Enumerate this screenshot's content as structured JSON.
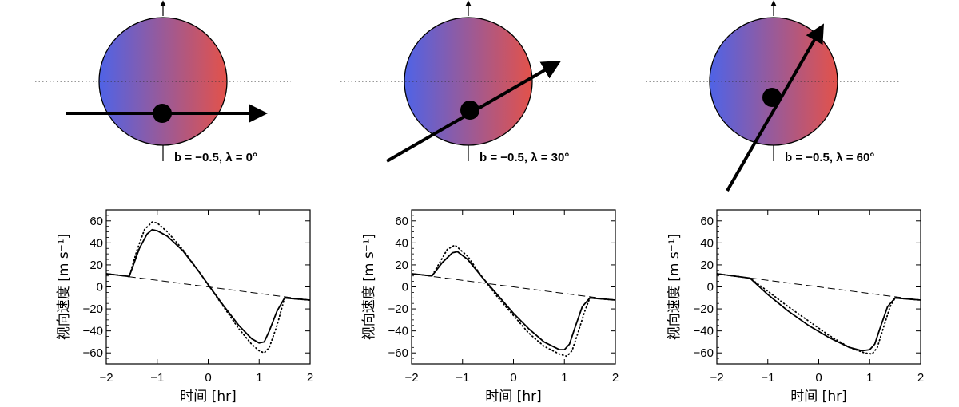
{
  "figure": {
    "panels": [
      {
        "diagram": {
          "caption": "b = −0.5, λ = 0°",
          "b": -0.5,
          "lambda_deg": 0
        },
        "chart": {
          "type": "line",
          "xlabel": "时间 [hr]",
          "ylabel": "视向速度 [m s⁻¹]",
          "xlim": [
            -2,
            2
          ],
          "ylim": [
            -70,
            70
          ],
          "xticks": [
            "−2",
            "−1",
            "0",
            "1",
            "2"
          ],
          "yticks": [
            "60",
            "40",
            "20",
            "0",
            "−20",
            "−40",
            "−60"
          ]
        }
      },
      {
        "diagram": {
          "caption": "b = −0.5, λ = 30°",
          "b": -0.5,
          "lambda_deg": 30
        },
        "chart": {
          "type": "line",
          "xlabel": "时间 [hr]",
          "ylabel": "视向速度 [m s⁻¹]",
          "xlim": [
            -2,
            2
          ],
          "ylim": [
            -70,
            70
          ],
          "xticks": [
            "−2",
            "−1",
            "0",
            "1",
            "2"
          ],
          "yticks": [
            "60",
            "40",
            "20",
            "0",
            "−20",
            "−40",
            "−60"
          ]
        }
      },
      {
        "diagram": {
          "caption": "b = −0.5, λ = 60°",
          "b": -0.5,
          "lambda_deg": 60
        },
        "chart": {
          "type": "line",
          "xlabel": "时间 [hr]",
          "ylabel": "视向速度 [m s⁻¹]",
          "xlim": [
            -2,
            2
          ],
          "ylim": [
            -70,
            70
          ],
          "xticks": [
            "−2",
            "−1",
            "0",
            "1",
            "2"
          ],
          "yticks": [
            "60",
            "40",
            "20",
            "0",
            "−20",
            "−40",
            "−60"
          ]
        }
      }
    ]
  },
  "chart_data": [
    {
      "type": "line",
      "xlabel": "时间 [hr]",
      "ylabel": "视向速度 [m s⁻¹]",
      "xlim": [
        -2,
        2
      ],
      "ylim": [
        -70,
        70
      ],
      "series": [
        {
          "style": "solid",
          "x": [
            -2,
            -1.55,
            -1.35,
            -1.2,
            -1.1,
            -1.0,
            -0.8,
            -0.5,
            -0.2,
            0,
            0.3,
            0.6,
            0.85,
            1.0,
            1.1,
            1.2,
            1.35,
            1.5,
            2
          ],
          "y": [
            12,
            9.5,
            35,
            48,
            52,
            51,
            46,
            33,
            15,
            2,
            -17,
            -35,
            -47,
            -51,
            -50,
            -40,
            -22,
            -10,
            -12
          ]
        },
        {
          "style": "dotted",
          "x": [
            -2,
            -1.55,
            -1.4,
            -1.25,
            -1.1,
            -1.0,
            -0.8,
            -0.5,
            -0.2,
            0,
            0.3,
            0.6,
            0.85,
            1.0,
            1.1,
            1.2,
            1.35,
            1.5,
            2
          ],
          "y": [
            12,
            9.5,
            33,
            52,
            59,
            58,
            50,
            34,
            15,
            2,
            -18,
            -38,
            -52,
            -58,
            -60,
            -55,
            -35,
            -10,
            -12
          ]
        },
        {
          "style": "dashed",
          "x": [
            -2,
            2
          ],
          "y": [
            12,
            -12
          ]
        }
      ]
    },
    {
      "type": "line",
      "xlabel": "时间 [hr]",
      "ylabel": "视向速度 [m s⁻¹]",
      "xlim": [
        -2,
        2
      ],
      "ylim": [
        -70,
        70
      ],
      "series": [
        {
          "style": "solid",
          "x": [
            -2,
            -1.6,
            -1.4,
            -1.2,
            -1.1,
            -0.9,
            -0.6,
            -0.3,
            0,
            0.3,
            0.6,
            0.9,
            1.0,
            1.1,
            1.2,
            1.35,
            1.5,
            2
          ],
          "y": [
            12,
            10,
            22,
            31,
            32,
            25,
            8,
            -8,
            -24,
            -38,
            -50,
            -57,
            -57,
            -52,
            -38,
            -18,
            -10,
            -12
          ]
        },
        {
          "style": "dotted",
          "x": [
            -2,
            -1.6,
            -1.45,
            -1.3,
            -1.15,
            -0.9,
            -0.6,
            -0.3,
            0,
            0.3,
            0.6,
            0.9,
            1.05,
            1.15,
            1.25,
            1.4,
            1.5,
            2
          ],
          "y": [
            12,
            10,
            22,
            34,
            38,
            28,
            8,
            -10,
            -26,
            -42,
            -54,
            -61,
            -63,
            -58,
            -44,
            -22,
            -10,
            -12
          ]
        },
        {
          "style": "dashed",
          "x": [
            -2,
            2
          ],
          "y": [
            12,
            -12
          ]
        }
      ]
    },
    {
      "type": "line",
      "xlabel": "时间 [hr]",
      "ylabel": "视向速度 [m s⁻¹]",
      "xlim": [
        -2,
        2
      ],
      "ylim": [
        -70,
        70
      ],
      "series": [
        {
          "style": "solid",
          "x": [
            -2,
            -1.35,
            -1.0,
            -0.6,
            -0.2,
            0.2,
            0.6,
            0.85,
            1.0,
            1.1,
            1.2,
            1.35,
            1.5,
            2
          ],
          "y": [
            12,
            8,
            -7,
            -22,
            -35,
            -46,
            -55,
            -58,
            -57,
            -52,
            -38,
            -18,
            -10,
            -12
          ]
        },
        {
          "style": "dotted",
          "x": [
            -2,
            -1.35,
            -1.0,
            -0.6,
            -0.2,
            0.2,
            0.6,
            0.9,
            1.05,
            1.15,
            1.25,
            1.4,
            1.5,
            2
          ],
          "y": [
            12,
            8,
            -4,
            -18,
            -31,
            -44,
            -55,
            -60,
            -61,
            -55,
            -40,
            -18,
            -10,
            -12
          ]
        },
        {
          "style": "dashed",
          "x": [
            -2,
            2
          ],
          "y": [
            12,
            -12
          ]
        }
      ]
    }
  ]
}
